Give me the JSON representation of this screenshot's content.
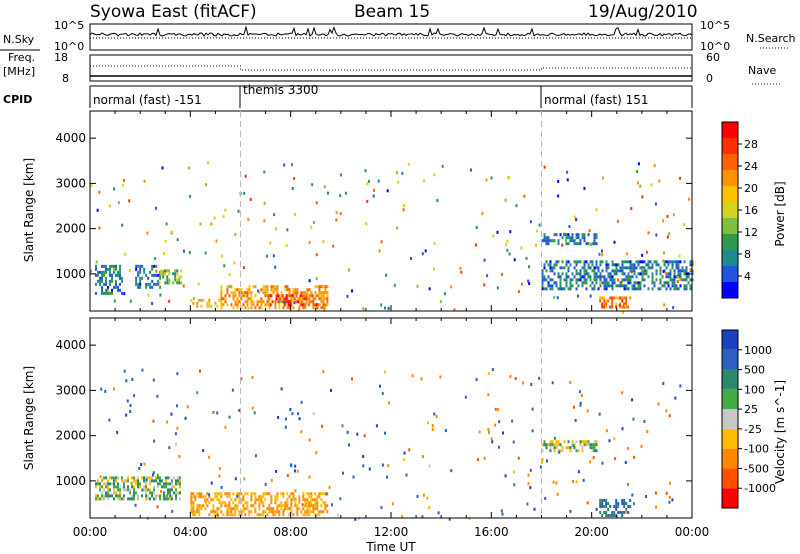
{
  "header": {
    "station": "Syowa East (fitACF)",
    "beam": "Beam 15",
    "date": "19/Aug/2010"
  },
  "panels": {
    "nsky": {
      "label": "N.Sky",
      "ytick_top": "10^5",
      "ytick_bottom": "10^0",
      "right_label": "N.Search",
      "rtick_top": "10^5",
      "rtick_bottom": "10^0"
    },
    "freq": {
      "label_line1": "Freq.",
      "label_line2": "[MHz]",
      "ytick_top": "18",
      "ytick_bottom": "8",
      "right_label": "Nave",
      "rtick_top": "60",
      "rtick_bottom": "0"
    },
    "cpid": {
      "label": "CPID",
      "segments": [
        "normal (fast) -151",
        "themis 3300",
        "normal (fast) 151"
      ]
    }
  },
  "axes": {
    "ylabel": "Slant Range [km]",
    "xlabel": "Time UT",
    "xticks": [
      "00:00",
      "04:00",
      "08:00",
      "12:00",
      "16:00",
      "20:00",
      "00:00"
    ],
    "yticks": [
      "1000",
      "2000",
      "3000",
      "4000"
    ]
  },
  "power_colorbar": {
    "label": "Power [dB]",
    "ticks": [
      "4",
      "8",
      "12",
      "16",
      "20",
      "24",
      "28"
    ],
    "colors": [
      "#0000ff",
      "#2255dd",
      "#1f8a8a",
      "#2e9a4a",
      "#7fbf3f",
      "#d4d420",
      "#ffc000",
      "#ff9000",
      "#ff6000",
      "#ff3000",
      "#ff0000"
    ]
  },
  "velocity_colorbar": {
    "label": "Velocity [m s^-1]",
    "ticks": [
      "1000",
      "500",
      "100",
      "25",
      "-25",
      "-100",
      "-500",
      "-1000"
    ],
    "colors": [
      "#1a3fbf",
      "#2a60c0",
      "#2a8a6a",
      "#44aa44",
      "#c8c8c8",
      "#ffbb00",
      "#ff8800",
      "#ff5000",
      "#ff0000"
    ]
  },
  "chart_data": {
    "type": "heatmap",
    "title": "Syowa East (fitACF) Beam 15 19/Aug/2010",
    "x_range": [
      "00:00",
      "24:00"
    ],
    "y_range_km": [
      180,
      4600
    ],
    "mode_changes_ut": [
      "06:00",
      "18:00"
    ],
    "power_regions": [
      {
        "t_start": 0.2,
        "t_end": 1.3,
        "range_start": 600,
        "range_end": 1200,
        "level_db": 6
      },
      {
        "t_start": 1.8,
        "t_end": 2.8,
        "range_start": 700,
        "range_end": 1200,
        "level_db": 6
      },
      {
        "t_start": 2.8,
        "t_end": 3.6,
        "range_start": 800,
        "range_end": 1100,
        "level_db": 12
      },
      {
        "t_start": 4.0,
        "t_end": 5.2,
        "range_start": 300,
        "range_end": 450,
        "level_db": 20
      },
      {
        "t_start": 5.2,
        "t_end": 9.5,
        "range_start": 250,
        "range_end": 750,
        "level_db": 22
      },
      {
        "t_start": 7.0,
        "t_end": 9.0,
        "range_start": 350,
        "range_end": 550,
        "level_db": 28
      },
      {
        "t_start": 18.0,
        "t_end": 20.2,
        "range_start": 1700,
        "range_end": 1900,
        "level_db": 6
      },
      {
        "t_start": 18.0,
        "t_end": 24.0,
        "range_start": 700,
        "range_end": 1300,
        "level_db": 6
      },
      {
        "t_start": 20.3,
        "t_end": 21.5,
        "range_start": 250,
        "range_end": 500,
        "level_db": 24
      }
    ],
    "velocity_regions": [
      {
        "t_start": 0.2,
        "t_end": 3.6,
        "range_start": 600,
        "range_end": 1100,
        "velocity": 0
      },
      {
        "t_start": 4.0,
        "t_end": 9.5,
        "range_start": 250,
        "range_end": 750,
        "velocity": -100
      },
      {
        "t_start": 18.0,
        "t_end": 20.2,
        "range_start": 1700,
        "range_end": 1900,
        "velocity": 0
      },
      {
        "t_start": 20.3,
        "t_end": 21.5,
        "range_start": 250,
        "range_end": 600,
        "velocity": 100
      }
    ]
  }
}
